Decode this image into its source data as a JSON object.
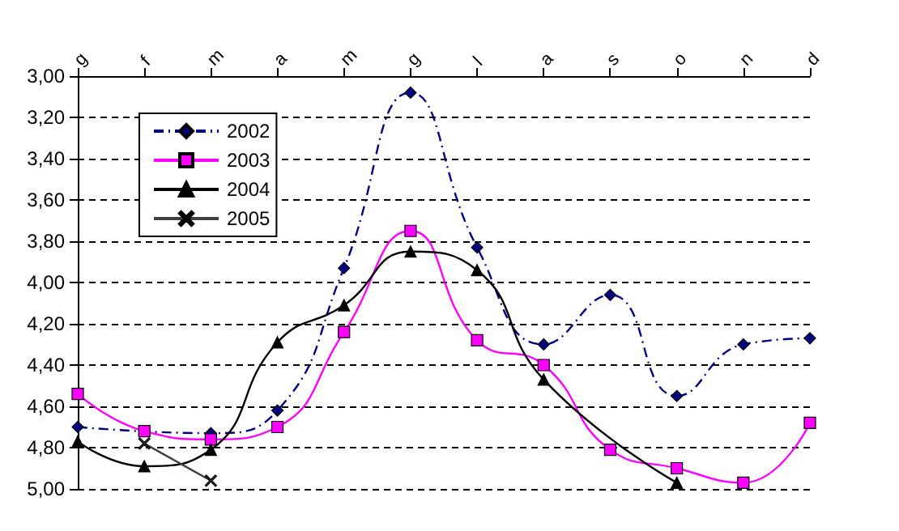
{
  "chart_data": {
    "type": "line",
    "categories": [
      "g",
      "f",
      "m",
      "a",
      "m",
      "g",
      "l",
      "a",
      "s",
      "o",
      "n",
      "d"
    ],
    "series": [
      {
        "name": "2002",
        "color": "#000080",
        "marker": "diamond",
        "line_style": "dashed",
        "values": [
          4.7,
          null,
          4.73,
          4.62,
          3.93,
          3.08,
          3.83,
          4.3,
          4.06,
          4.55,
          4.3,
          4.27
        ]
      },
      {
        "name": "2003",
        "color": "#ff00ff",
        "marker": "square",
        "values": [
          4.54,
          4.72,
          4.76,
          4.7,
          4.24,
          3.75,
          4.28,
          4.4,
          4.81,
          4.9,
          4.97,
          4.68
        ]
      },
      {
        "name": "2004",
        "color": "#000000",
        "marker": "triangle",
        "values": [
          4.77,
          4.89,
          4.81,
          4.29,
          4.11,
          3.85,
          3.94,
          4.47,
          null,
          4.97,
          null,
          null
        ]
      },
      {
        "name": "2005",
        "color": "#404040",
        "marker": "cross",
        "values": [
          null,
          4.78,
          4.96,
          null,
          null,
          null,
          null,
          null,
          null,
          null,
          null,
          null
        ]
      }
    ],
    "ylim": [
      5.0,
      3.0
    ],
    "yticks": [
      {
        "value": 3.0,
        "label": "3,00"
      },
      {
        "value": 3.2,
        "label": "3,20"
      },
      {
        "value": 3.4,
        "label": "3,40"
      },
      {
        "value": 3.6,
        "label": "3,60"
      },
      {
        "value": 3.8,
        "label": "3,80"
      },
      {
        "value": 4.0,
        "label": "4,00"
      },
      {
        "value": 4.2,
        "label": "4,20"
      },
      {
        "value": 4.4,
        "label": "4,40"
      },
      {
        "value": 4.6,
        "label": "4,60"
      },
      {
        "value": 4.8,
        "label": "4,80"
      },
      {
        "value": 5.0,
        "label": "5,00"
      }
    ],
    "grid": "y",
    "legend": "top left",
    "line_style": "solid"
  }
}
